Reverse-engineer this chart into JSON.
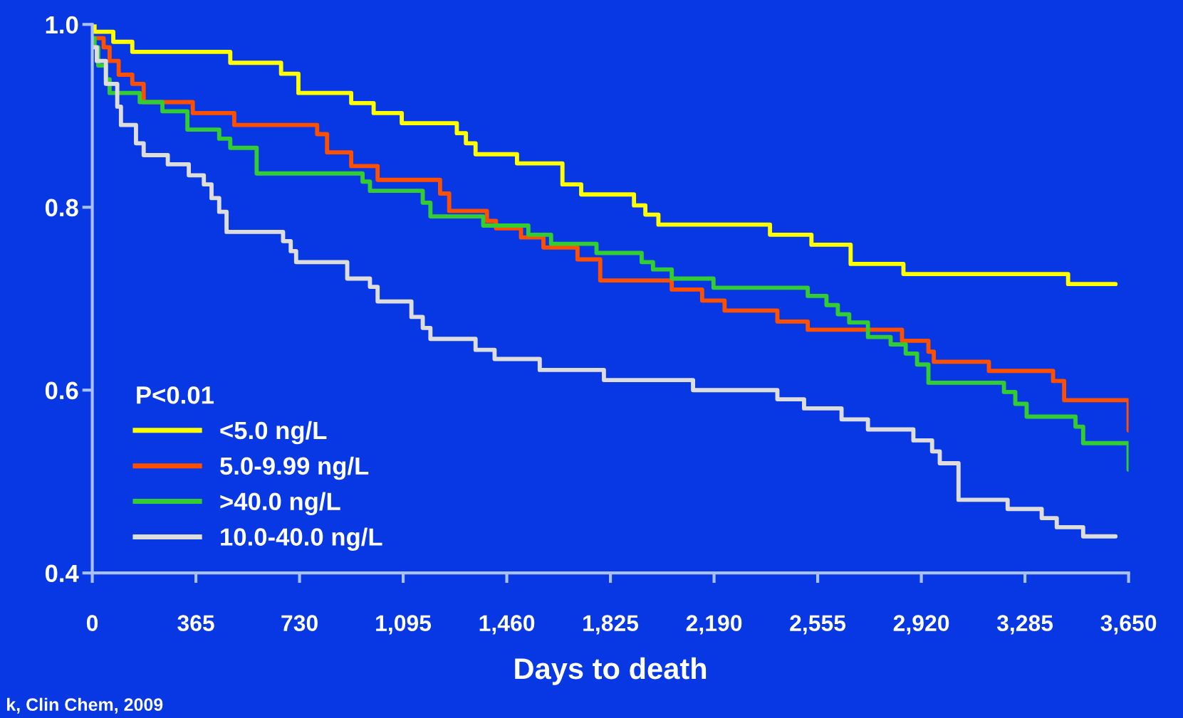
{
  "chart_data": {
    "type": "step",
    "xlabel": "Days to death",
    "legend_title": "P<0.01",
    "legend": "bottom left",
    "grid": false,
    "xlim": [
      0,
      3650
    ],
    "ylim": [
      0.4,
      1.0
    ],
    "xticks": [
      0,
      {
        "value": 365,
        "label": "365"
      },
      {
        "value": 730,
        "label": "730"
      },
      {
        "value": 1095,
        "label": "1,095"
      },
      {
        "value": 1460,
        "label": "1,460"
      },
      {
        "value": 1825,
        "label": "1,825"
      },
      {
        "value": 2190,
        "label": "2,190"
      },
      {
        "value": 2555,
        "label": "2,555"
      },
      {
        "value": 2920,
        "label": "2,920"
      },
      {
        "value": 3285,
        "label": "3,285"
      },
      {
        "value": 3650,
        "label": "3,650"
      }
    ],
    "yticks": [
      0.4,
      0.6,
      0.8,
      {
        "value": 1.0,
        "label": "1.0"
      }
    ],
    "annotations": [
      "k, Clin Chem, 2009"
    ],
    "series": [
      {
        "name": "<5.0 ng/L",
        "color": "#ffff00",
        "x": [
          0,
          8,
          74,
          141,
          486,
          665,
          726,
          912,
          991,
          1090,
          1284,
          1316,
          1350,
          1496,
          1656,
          1722,
          1908,
          1948,
          1994,
          2387,
          2533,
          2671,
          2857,
          3437,
          3604
        ],
        "values": [
          1.0,
          0.992,
          0.981,
          0.97,
          0.958,
          0.946,
          0.925,
          0.914,
          0.903,
          0.892,
          0.881,
          0.87,
          0.858,
          0.848,
          0.825,
          0.814,
          0.802,
          0.792,
          0.781,
          0.77,
          0.759,
          0.738,
          0.727,
          0.716,
          0.716
        ]
      },
      {
        "name": "5.0-9.99 ng/L",
        "color": "#ff5000",
        "x": [
          8,
          40,
          61,
          93,
          141,
          181,
          354,
          500,
          792,
          827,
          912,
          1005,
          1225,
          1257,
          1390,
          1422,
          1510,
          1589,
          1709,
          1789,
          2041,
          2148,
          2227,
          2413,
          2520,
          2852,
          2945,
          2964,
          3158,
          3384,
          3423,
          3650
        ],
        "values": [
          0.985,
          0.975,
          0.96,
          0.945,
          0.935,
          0.915,
          0.903,
          0.89,
          0.88,
          0.86,
          0.845,
          0.83,
          0.815,
          0.796,
          0.785,
          0.777,
          0.767,
          0.756,
          0.743,
          0.72,
          0.71,
          0.698,
          0.687,
          0.675,
          0.666,
          0.654,
          0.642,
          0.631,
          0.621,
          0.61,
          0.589,
          0.556
        ]
      },
      {
        "name": ">40.0 ng/L",
        "color": "#33cc33",
        "x": [
          0,
          8,
          21,
          48,
          61,
          167,
          247,
          335,
          447,
          486,
          579,
          952,
          978,
          1164,
          1191,
          1377,
          1536,
          1616,
          1776,
          1935,
          1975,
          2041,
          2188,
          2520,
          2586,
          2626,
          2666,
          2732,
          2812,
          2865,
          2905,
          2945,
          3211,
          3251,
          3291,
          3463,
          3490,
          3650
        ],
        "values": [
          0.985,
          0.975,
          0.955,
          0.94,
          0.925,
          0.915,
          0.905,
          0.885,
          0.875,
          0.865,
          0.837,
          0.828,
          0.818,
          0.805,
          0.79,
          0.78,
          0.77,
          0.76,
          0.75,
          0.74,
          0.732,
          0.722,
          0.712,
          0.703,
          0.693,
          0.683,
          0.674,
          0.658,
          0.65,
          0.64,
          0.628,
          0.608,
          0.598,
          0.585,
          0.571,
          0.56,
          0.542,
          0.513
        ]
      },
      {
        "name": "10.0-40.0 ng/L",
        "color": "#dddddd",
        "x": [
          0,
          16,
          48,
          88,
          101,
          154,
          181,
          266,
          340,
          393,
          420,
          447,
          473,
          672,
          699,
          718,
          898,
          978,
          1005,
          1124,
          1164,
          1191,
          1350,
          1417,
          1576,
          1802,
          2116,
          2413,
          2507,
          2639,
          2732,
          2892,
          2958,
          2985,
          3051,
          3224,
          3344,
          3397,
          3490,
          3604
        ],
        "values": [
          0.975,
          0.96,
          0.935,
          0.91,
          0.89,
          0.87,
          0.857,
          0.847,
          0.835,
          0.825,
          0.81,
          0.795,
          0.773,
          0.763,
          0.752,
          0.74,
          0.722,
          0.713,
          0.697,
          0.68,
          0.668,
          0.656,
          0.644,
          0.634,
          0.622,
          0.611,
          0.6,
          0.59,
          0.58,
          0.568,
          0.557,
          0.545,
          0.533,
          0.52,
          0.48,
          0.47,
          0.46,
          0.45,
          0.44,
          0.44
        ]
      }
    ]
  }
}
